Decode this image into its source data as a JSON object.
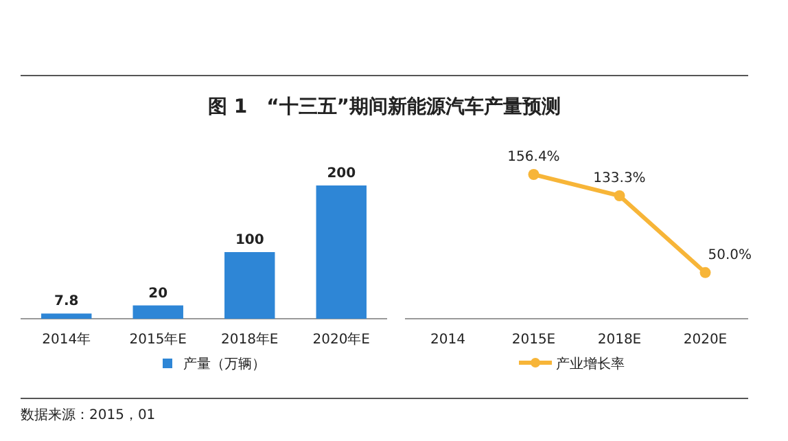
{
  "chart_data": [
    {
      "type": "bar",
      "title": "图 1　“十三五”期间新能源汽车产量预测",
      "categories": [
        "2014年",
        "2015年E",
        "2018年E",
        "2020年E"
      ],
      "series": [
        {
          "name": "产量（万辆）",
          "color": "#2e86d6",
          "values": [
            7.8,
            20,
            100,
            200
          ]
        }
      ],
      "data_labels": true,
      "legend": "bottom",
      "annotations": [
        "数据来源：2015，01"
      ]
    },
    {
      "type": "line",
      "categories": [
        "2014",
        "2015E",
        "2018E",
        "2020E"
      ],
      "series": [
        {
          "name": "产业增长率",
          "color": "#f7b538",
          "values": [
            null,
            156.4,
            133.3,
            50.0
          ],
          "value_labels": [
            null,
            "156.4%",
            "133.3%",
            "50.0%"
          ]
        }
      ],
      "marker": "circle",
      "legend": "bottom"
    }
  ]
}
